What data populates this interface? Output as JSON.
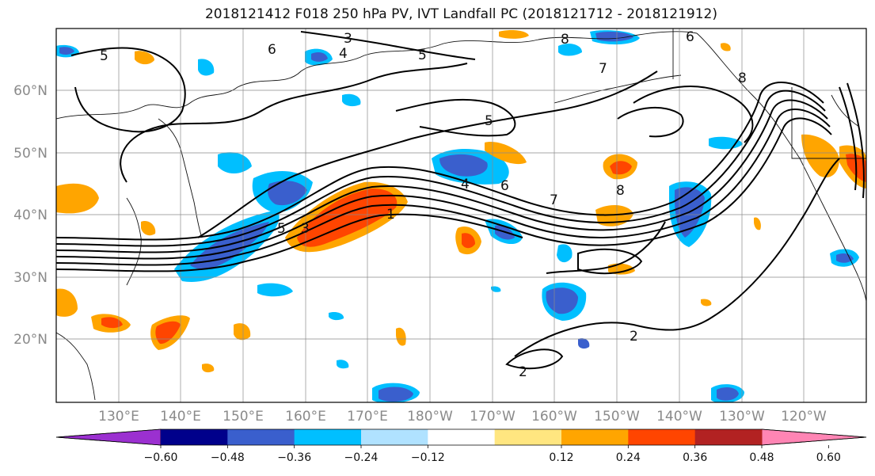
{
  "title": "2018121412 F018 250 hPa PV, IVT Landfall PC (2018121712 - 2018121912)",
  "lat_labels": [
    "60°N",
    "50°N",
    "40°N",
    "30°N",
    "20°N"
  ],
  "lon_labels": [
    "130°E",
    "140°E",
    "150°E",
    "160°E",
    "170°E",
    "180°W",
    "170°W",
    "160°W",
    "150°W",
    "140°W",
    "130°W",
    "120°W"
  ],
  "colorbar": {
    "ticks": [
      "−0.60",
      "−0.48",
      "−0.36",
      "−0.24",
      "−0.12",
      "0.12",
      "0.24",
      "0.36",
      "0.48",
      "0.60"
    ],
    "colors": [
      "#9b30d0",
      "#00008b",
      "#3a5fcd",
      "#00bfff",
      "#b0e2ff",
      "#ffffff",
      "#ffe680",
      "#ffa500",
      "#ff4500",
      "#b22222",
      "#ff85b4"
    ]
  },
  "contour_labels": [
    "5",
    "3",
    "4",
    "6",
    "5",
    "8",
    "6",
    "7",
    "5",
    "4",
    "6",
    "7",
    "8",
    "8",
    "5",
    "3",
    "1",
    "2",
    "2"
  ]
}
